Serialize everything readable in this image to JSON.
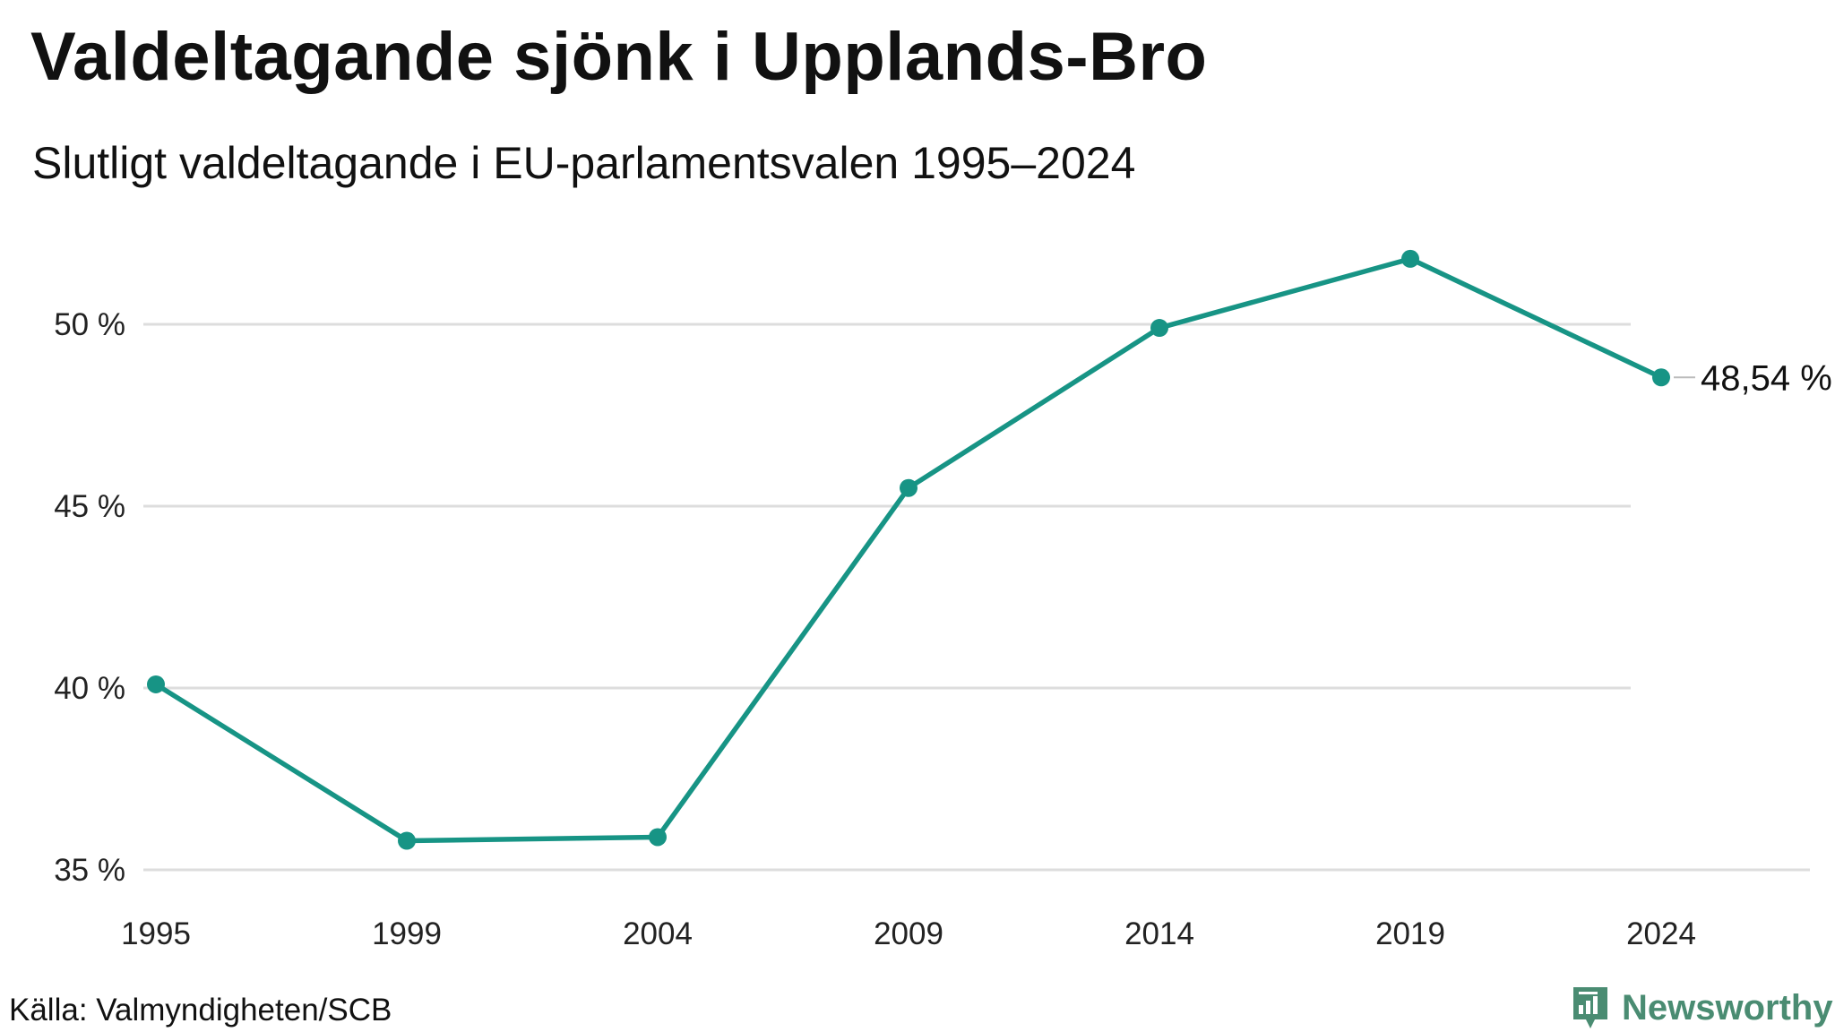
{
  "title": "Valdeltagande sjönk i Upplands-Bro",
  "subtitle": "Slutligt valdeltagande i EU-parlamentsvalen 1995–2024",
  "source": "Källa: Valmyndigheten/SCB",
  "brand": {
    "name": "Newsworthy",
    "icon": "newsworthy-logo-icon",
    "color": "#4a8c72"
  },
  "chart_data": {
    "type": "line",
    "x": [
      "1995",
      "1999",
      "2004",
      "2009",
      "2014",
      "2019",
      "2024"
    ],
    "series": [
      {
        "values": [
          40.1,
          35.8,
          35.9,
          45.5,
          49.9,
          51.8,
          48.54
        ],
        "color": "#179485"
      }
    ],
    "yticks": [
      {
        "value": 35,
        "label": "35 %"
      },
      {
        "value": 40,
        "label": "40 %"
      },
      {
        "value": 45,
        "label": "45 %"
      },
      {
        "value": 50,
        "label": "50 %"
      }
    ],
    "ylim": [
      35,
      52
    ],
    "grid": true,
    "end_label": "48,54 %",
    "xlabel": "",
    "ylabel": ""
  }
}
